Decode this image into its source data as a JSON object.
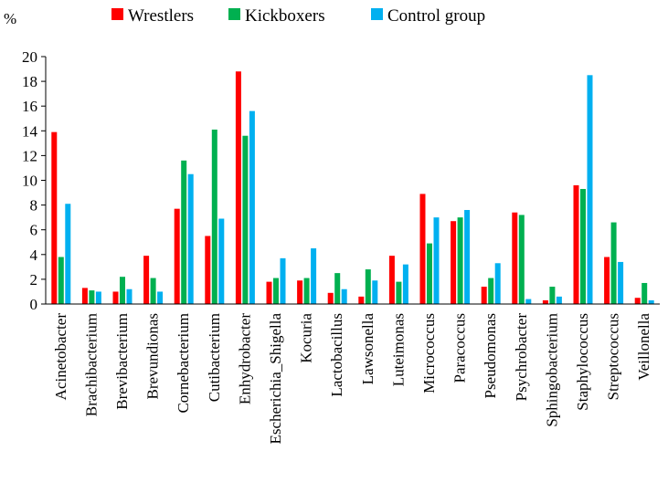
{
  "chart_data": {
    "type": "bar",
    "title": "",
    "ylabel": "%",
    "xlabel": "",
    "ylim": [
      0,
      20
    ],
    "yticks": [
      0,
      2,
      4,
      6,
      8,
      10,
      12,
      14,
      16,
      18,
      20
    ],
    "grid": false,
    "legend_position": "top",
    "categories": [
      "Acinetobacter",
      "Brachibacterium",
      "Brevibacterium",
      "Brevundionas",
      "Cornebacterium",
      "Cutibacterium",
      "Enhydrobacter",
      "Escherichia_Shigella",
      "Kocuria",
      "Lactobacillus",
      "Lawsonella",
      "Luteimonas",
      "Micrococcus",
      "Paracoccus",
      "Pseudomonas",
      "Psychrobacter",
      "Sphingobacterium",
      "Staphylococcus",
      "Streptococcus",
      "Veillonella"
    ],
    "series": [
      {
        "name": "Wrestlers",
        "color": "#ff0000",
        "values": [
          13.9,
          1.3,
          1.0,
          3.9,
          7.7,
          5.5,
          18.8,
          1.8,
          1.9,
          0.9,
          0.6,
          3.9,
          8.9,
          6.7,
          1.4,
          7.4,
          0.3,
          9.6,
          3.8,
          0.5
        ]
      },
      {
        "name": "Kickboxers",
        "color": "#00b050",
        "values": [
          3.8,
          1.1,
          2.2,
          2.1,
          11.6,
          14.1,
          13.6,
          2.1,
          2.1,
          2.5,
          2.8,
          1.8,
          4.9,
          7.0,
          2.1,
          7.2,
          1.4,
          9.3,
          6.6,
          1.7
        ]
      },
      {
        "name": "Control group",
        "color": "#00b0f0",
        "values": [
          8.1,
          1.0,
          1.2,
          1.0,
          10.5,
          6.9,
          15.6,
          3.7,
          4.5,
          1.2,
          1.9,
          3.2,
          7.0,
          7.6,
          3.3,
          0.4,
          0.6,
          18.5,
          3.4,
          0.3
        ]
      }
    ]
  }
}
